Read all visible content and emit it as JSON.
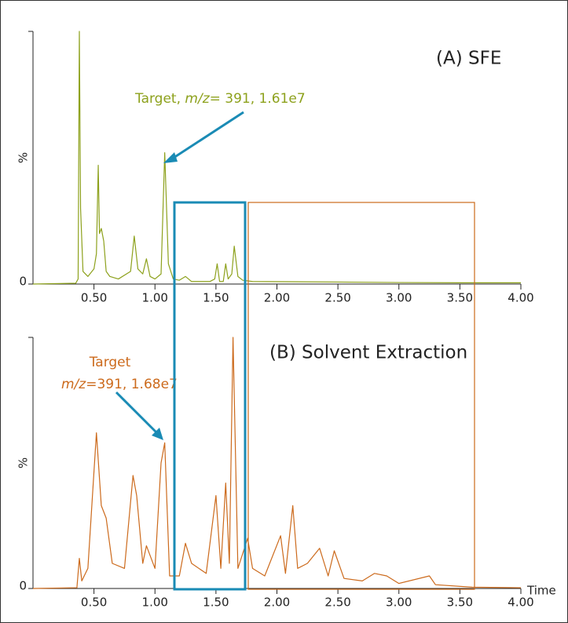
{
  "chart_data": [
    {
      "type": "line",
      "panel_label": "(A) SFE",
      "target_label": [
        "Target,",
        "m/z",
        "= 391, 1.61e7"
      ],
      "ylabel": "%",
      "xlim": [
        0,
        4
      ],
      "ylim": [
        0,
        100
      ],
      "xticks": [
        {
          "value": 0.5,
          "label": "0.50"
        },
        {
          "value": 1,
          "label": "1.00"
        },
        {
          "value": 1.5,
          "label": "1.50"
        },
        {
          "value": 2,
          "label": "2.00"
        },
        {
          "value": 2.5,
          "label": "2.50"
        },
        {
          "value": 3,
          "label": "3.00"
        },
        {
          "value": 3.5,
          "label": "3.50"
        },
        {
          "value": 4,
          "label": "4.00"
        }
      ],
      "yticks": [
        0
      ],
      "series": [
        {
          "color": "#8da11c",
          "x": [
            0,
            0.35,
            0.37,
            0.38,
            0.39,
            0.41,
            0.45,
            0.5,
            0.52,
            0.535,
            0.545,
            0.56,
            0.58,
            0.6,
            0.63,
            0.7,
            0.8,
            0.83,
            0.86,
            0.9,
            0.93,
            0.96,
            1.0,
            1.05,
            1.08,
            1.11,
            1.15,
            1.2,
            1.25,
            1.3,
            1.45,
            1.49,
            1.51,
            1.53,
            1.56,
            1.58,
            1.6,
            1.63,
            1.65,
            1.68,
            1.72,
            1.8,
            2.5,
            3.0,
            3.5,
            4.0
          ],
          "values": [
            0,
            0.3,
            2,
            100,
            30,
            5,
            3,
            6,
            12,
            47,
            20,
            22,
            17,
            5,
            3,
            2,
            5,
            19,
            6,
            4,
            10,
            3,
            2,
            4,
            52,
            8,
            2,
            1.5,
            3,
            1,
            1,
            2,
            8,
            1,
            1,
            8,
            2,
            4,
            15,
            3,
            1.5,
            1,
            0.8,
            0.6,
            0.5,
            0.5
          ]
        }
      ]
    },
    {
      "type": "line",
      "panel_label": "(B) Solvent Extraction",
      "target_label": [
        "Target",
        "m/z",
        "=391, 1.68e7"
      ],
      "ylabel": "%",
      "xlabel": "Time",
      "xlim": [
        0,
        4
      ],
      "ylim": [
        0,
        100
      ],
      "xticks": [
        {
          "value": 0.5,
          "label": "0.50"
        },
        {
          "value": 1,
          "label": "1.00"
        },
        {
          "value": 1.5,
          "label": "1.50"
        },
        {
          "value": 2,
          "label": "2.00"
        },
        {
          "value": 2.5,
          "label": "2.50"
        },
        {
          "value": 3,
          "label": "3.00"
        },
        {
          "value": 3.5,
          "label": "3.50"
        },
        {
          "value": 4,
          "label": "4.00"
        }
      ],
      "yticks": [
        0
      ],
      "series": [
        {
          "color": "#cc6a1c",
          "x": [
            0,
            0.36,
            0.38,
            0.4,
            0.45,
            0.52,
            0.56,
            0.6,
            0.65,
            0.75,
            0.82,
            0.85,
            0.9,
            0.93,
            1.0,
            1.05,
            1.08,
            1.12,
            1.2,
            1.25,
            1.3,
            1.42,
            1.5,
            1.54,
            1.58,
            1.61,
            1.64,
            1.68,
            1.76,
            1.8,
            1.9,
            2.03,
            2.07,
            2.13,
            2.17,
            2.25,
            2.35,
            2.42,
            2.47,
            2.55,
            2.7,
            2.8,
            2.9,
            3.0,
            3.25,
            3.3,
            3.6,
            4.0
          ],
          "values": [
            0,
            0.3,
            12,
            3,
            8,
            62,
            33,
            28,
            10,
            8,
            45,
            37,
            10,
            17,
            8,
            50,
            58,
            5,
            5,
            18,
            10,
            6,
            37,
            8,
            42,
            10,
            100,
            8,
            20,
            8,
            5,
            21,
            6,
            33,
            8,
            10,
            16,
            5,
            15,
            4,
            3,
            6,
            5,
            2,
            5,
            1.5,
            0.5,
            0.3
          ]
        }
      ]
    }
  ]
}
